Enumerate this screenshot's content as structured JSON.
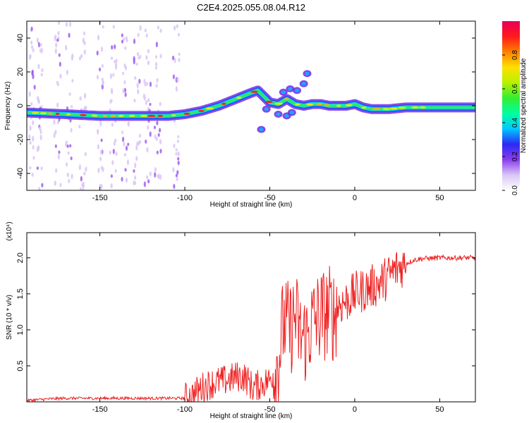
{
  "title": "C2E4.2025.055.08.04.R12",
  "chart_data": [
    {
      "type": "heatmap",
      "xlabel": "Height of straight line (km)",
      "ylabel": "Frequency (Hz)",
      "xlim": [
        -193,
        71
      ],
      "ylim": [
        -50,
        50
      ],
      "xticks": [
        -150,
        -100,
        -50,
        0,
        50
      ],
      "yticks": [
        -40,
        -20,
        0,
        20,
        40
      ],
      "colorbar": {
        "label": "Normalized spectral amplitude",
        "range": [
          0,
          1
        ],
        "ticks": [
          0.0,
          0.2,
          0.4,
          0.6,
          0.8
        ],
        "colors": [
          "#ffffff",
          "#d9c6f5",
          "#8a3cf0",
          "#2a2af5",
          "#00c8ff",
          "#00ffa0",
          "#33ee33",
          "#b8f000",
          "#ffe000",
          "#ff8000",
          "#ff1a1a",
          "#e8005a"
        ]
      },
      "ridge": {
        "x": [
          -193,
          -170,
          -150,
          -130,
          -110,
          -100,
          -90,
          -80,
          -70,
          -60,
          -57,
          -50,
          -45,
          -40,
          -35,
          -30,
          -25,
          -20,
          -15,
          -10,
          -5,
          0,
          5,
          10,
          20,
          30,
          40,
          50,
          60,
          71
        ],
        "y": [
          -4,
          -5,
          -6,
          -6,
          -6,
          -5,
          -3,
          0,
          4,
          8,
          9,
          2,
          1,
          4,
          1,
          0,
          1,
          1,
          0,
          0,
          0,
          1,
          -1,
          -2,
          -2,
          -1,
          -1,
          -1,
          -1,
          -1
        ]
      }
    },
    {
      "type": "line",
      "xlabel": "Height of straight line (km)",
      "ylabel": "SNR (10 * v/v)",
      "y_multiplier": "(x10⁴)",
      "xlim": [
        -193,
        71
      ],
      "ylim": [
        0,
        2.35
      ],
      "xticks": [
        -150,
        -100,
        -50,
        0,
        50
      ],
      "yticks": [
        0.5,
        1.0,
        1.5,
        2.0
      ],
      "color": "#ee2222",
      "series": [
        {
          "x": [
            -193,
            -180,
            -170,
            -160,
            -150,
            -140,
            -130,
            -120,
            -110,
            -100,
            -95,
            -90,
            -85,
            -80,
            -75,
            -70,
            -65,
            -60,
            -55,
            -50,
            -45,
            -42,
            -38,
            -35,
            -32,
            -28,
            -25,
            -20,
            -15,
            -12,
            -10,
            -5,
            0,
            5,
            10,
            15,
            20,
            25,
            30,
            35,
            40,
            50,
            60,
            71
          ],
          "y": [
            0.02,
            0.04,
            0.05,
            0.05,
            0.05,
            0.05,
            0.05,
            0.05,
            0.05,
            0.05,
            0.1,
            0.2,
            0.25,
            0.28,
            0.3,
            0.35,
            0.35,
            0.2,
            0.25,
            0.3,
            0.55,
            1.1,
            1.0,
            1.2,
            0.9,
            0.9,
            1.1,
            1.2,
            1.25,
            1.2,
            1.35,
            1.4,
            1.5,
            1.55,
            1.6,
            1.65,
            1.75,
            1.85,
            1.92,
            1.97,
            1.99,
            2.0,
            2.0,
            2.0
          ]
        }
      ]
    }
  ]
}
